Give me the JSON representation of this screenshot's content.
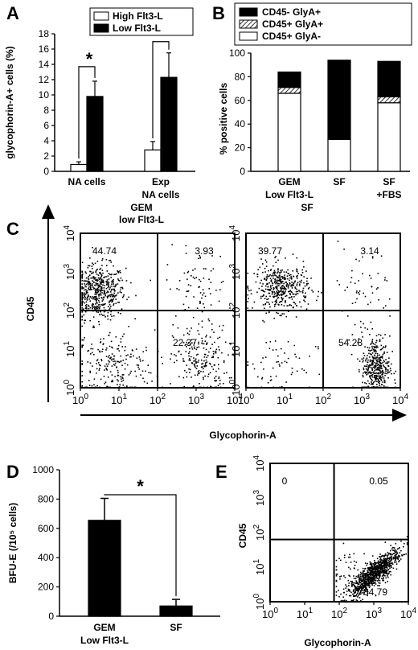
{
  "chart_data": [
    {
      "panel": "A",
      "type": "bar",
      "ylabel": "glycophorin-A+ cells (%)",
      "ylim": [
        0,
        18
      ],
      "yticks": [
        "0",
        "2",
        "4",
        "6",
        "8",
        "10",
        "12",
        "14",
        "16",
        "18"
      ],
      "categories": [
        "NA cells",
        "Exp NA cells"
      ],
      "category_lines": [
        [
          "NA cells"
        ],
        [
          "Exp",
          "NA cells"
        ]
      ],
      "legend_position": "top-right",
      "series": [
        {
          "name": "High Flt3-L",
          "color": "#ffffff",
          "values": [
            0.9,
            2.8
          ],
          "errors": [
            0.35,
            1.1
          ]
        },
        {
          "name": "Low Flt3-L",
          "color": "#000000",
          "values": [
            9.8,
            12.3
          ],
          "errors": [
            2.0,
            3.2
          ]
        }
      ],
      "significance": [
        "*",
        "*"
      ]
    },
    {
      "panel": "B",
      "type": "bar",
      "stacked": true,
      "ylabel": "% positive cells",
      "ylim": [
        0,
        100
      ],
      "yticks": [
        "0",
        "20",
        "40",
        "60",
        "80",
        "100"
      ],
      "categories": [
        "GEM Low Flt3-L",
        "SF",
        "SF +FBS"
      ],
      "category_lines": [
        [
          "GEM",
          "Low Flt3-L"
        ],
        [
          "SF"
        ],
        [
          "SF",
          "+FBS"
        ]
      ],
      "legend_position": "top",
      "series": [
        {
          "name": "CD45+ GlyA-",
          "color": "#ffffff",
          "values": [
            66,
            27,
            58
          ]
        },
        {
          "name": "CD45+ GlyA+",
          "color": "hatched",
          "values": [
            5,
            0,
            5
          ]
        },
        {
          "name": "CD45- GlyA+",
          "color": "#000000",
          "values": [
            13,
            67,
            30
          ]
        }
      ]
    },
    {
      "panel": "C",
      "type": "scatter",
      "xlabel": "Glycophorin-A",
      "ylabel": "CD45",
      "scale": "log",
      "xlim": [
        1,
        10000
      ],
      "ylim": [
        1,
        10000
      ],
      "plots": [
        {
          "title_lines": [
            "GEM",
            "low Flt3-L"
          ],
          "quadrants": {
            "upper_left": "44.74",
            "upper_right": "3.93",
            "lower_right": "22.37",
            "lower_left": ""
          }
        },
        {
          "title_lines": [
            "SF"
          ],
          "quadrants": {
            "upper_left": "39.77",
            "upper_right": "3.14",
            "lower_right": "54.28",
            "lower_left": ""
          }
        }
      ]
    },
    {
      "panel": "D",
      "type": "bar",
      "ylabel": "BFU-E (/10⁵ cells)",
      "ylim": [
        0,
        1000
      ],
      "yticks": [
        "0",
        "200",
        "400",
        "600",
        "800",
        "1000"
      ],
      "categories": [
        "GEM Low Flt3-L",
        "SF"
      ],
      "category_lines": [
        [
          "GEM",
          "Low Flt3-L"
        ],
        [
          "SF"
        ]
      ],
      "series": [
        {
          "name": "",
          "color": "#000000",
          "values": [
            655,
            70
          ],
          "errors": [
            150,
            45
          ]
        }
      ],
      "significance": [
        "*"
      ]
    },
    {
      "panel": "E",
      "type": "scatter",
      "xlabel": "Glycophorin-A",
      "ylabel": "CD45",
      "scale": "log",
      "xlim": [
        1,
        10000
      ],
      "ylim": [
        1,
        10000
      ],
      "quadrants": {
        "upper_left": "0",
        "upper_right": "0.05",
        "lower_right": "84.79",
        "lower_left": ""
      }
    }
  ],
  "log_tick_labels": [
    "0",
    "1",
    "2",
    "3",
    "4"
  ]
}
